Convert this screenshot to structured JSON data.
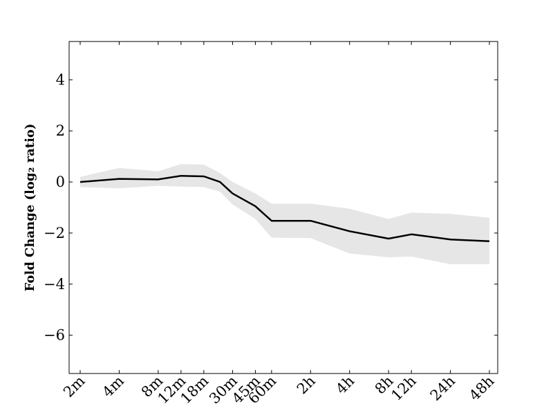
{
  "chart_data": {
    "type": "line",
    "title": "",
    "xlabel": "",
    "ylabel": "Fold Change (log₂ ratio)",
    "ylim": [
      -7.5,
      5.5
    ],
    "y_ticks": [
      4,
      2,
      0,
      -2,
      -4,
      -6
    ],
    "y_tick_labels": [
      "4",
      "2",
      "0",
      "−2",
      "−4",
      "−6"
    ],
    "x_scale": "log",
    "x_tick_labels": [
      "2m",
      "4m",
      "8m",
      "12m",
      "18m",
      "30m",
      "45m",
      "60m",
      "2h",
      "4h",
      "8h",
      "12h",
      "24h",
      "48h"
    ],
    "series": [
      {
        "role": "mean",
        "x": [
          "2m",
          "4m",
          "8m",
          "12m",
          "18m",
          "24m",
          "30m",
          "45m",
          "60m",
          "2h",
          "4h",
          "8h",
          "12h",
          "24h",
          "48h"
        ],
        "y": [
          0.0,
          0.12,
          0.1,
          0.24,
          0.22,
          0.0,
          -0.45,
          -0.95,
          -1.52,
          -1.52,
          -1.93,
          -2.22,
          -2.05,
          -2.25,
          -2.32
        ],
        "color": "#000000"
      },
      {
        "role": "band",
        "x": [
          "2m",
          "4m",
          "8m",
          "12m",
          "18m",
          "24m",
          "30m",
          "45m",
          "60m",
          "2h",
          "4h",
          "8h",
          "12h",
          "24h",
          "48h"
        ],
        "upper": [
          0.2,
          0.55,
          0.42,
          0.7,
          0.68,
          0.35,
          0.0,
          -0.45,
          -0.85,
          -0.85,
          -1.05,
          -1.45,
          -1.2,
          -1.25,
          -1.4
        ],
        "lower": [
          -0.2,
          -0.25,
          -0.15,
          -0.18,
          -0.2,
          -0.38,
          -0.88,
          -1.45,
          -2.18,
          -2.2,
          -2.8,
          -2.95,
          -2.92,
          -3.22,
          -3.22
        ],
        "color": "#e6e6e6"
      }
    ],
    "grid": false,
    "legend": "none"
  }
}
